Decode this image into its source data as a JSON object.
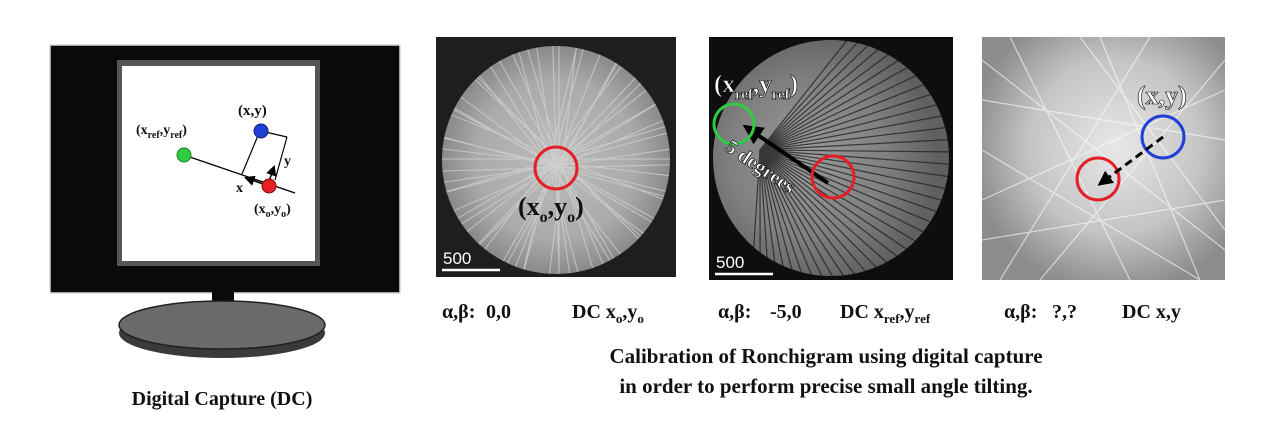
{
  "monitor": {
    "caption": "Digital Capture (DC)",
    "labels": {
      "ref": "(x_ref,y_ref)",
      "point": "(x,y)",
      "origin": "(x_o,y_o)",
      "x_axis": "x",
      "y_axis": "y"
    }
  },
  "panels": [
    {
      "point_label": "(x_o,y_o)",
      "scale_bar": "500",
      "tilt_label": "α,β:",
      "tilt_value": "0,0",
      "dc_label": "DC x_o,y_o"
    },
    {
      "point_label": "(x_ref,y_ref)",
      "arrow_label": "5 degrees",
      "scale_bar": "500",
      "tilt_label": "α,β:",
      "tilt_value": "-5,0",
      "dc_label": "DC x_ref,y_ref"
    },
    {
      "point_label": "(x,y)",
      "tilt_label": "α,β:",
      "tilt_value": "?,?",
      "dc_label": "DC x,y"
    }
  ],
  "caption_lines": [
    "Calibration of Ronchigram using digital capture",
    "in order to perform precise small angle tilting."
  ],
  "colors": {
    "red": "#e41f26",
    "green": "#2ecc40",
    "blue": "#1f3fd6",
    "monitor_body": "#0a0a0a",
    "monitor_base": "#5a5a5a"
  }
}
